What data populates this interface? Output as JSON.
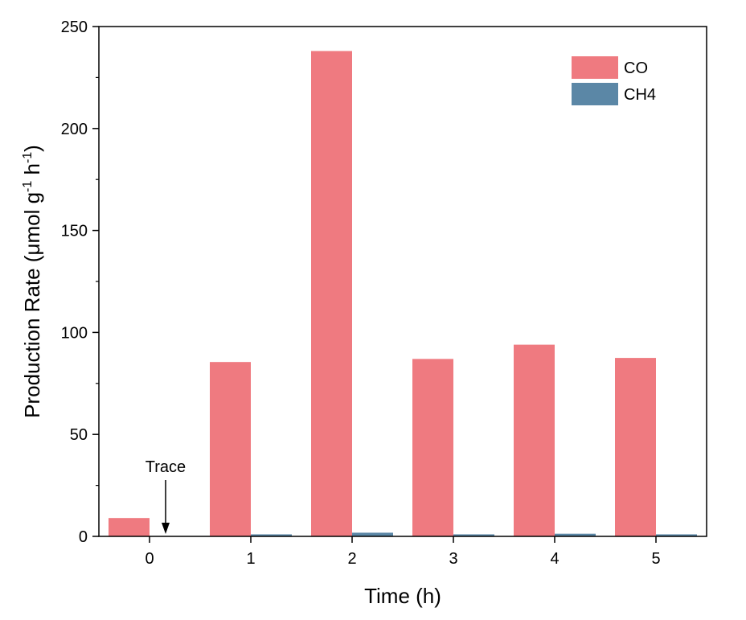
{
  "chart_data": {
    "type": "bar",
    "categories": [
      "0",
      "1",
      "2",
      "3",
      "4",
      "5"
    ],
    "series": [
      {
        "name": "CO",
        "values": [
          9,
          85.5,
          238,
          87,
          94,
          87.5
        ],
        "color": "#EF7A80"
      },
      {
        "name": "CH4",
        "values": [
          0,
          1.0,
          1.8,
          1.0,
          1.3,
          1.0
        ],
        "color": "#5B87A6"
      }
    ],
    "xlabel": "Time (h)",
    "ylabel_main": "Production Rate (",
    "ylabel_mu": "μ",
    "ylabel_mol": "mol g",
    "ylabel_sup1": "-1",
    "ylabel_h": " h",
    "ylabel_sup2": "-1",
    "ylabel_close": ")",
    "ylim": [
      0,
      250
    ],
    "yticks": [
      0,
      50,
      100,
      150,
      200,
      250
    ],
    "legend_position": "top-right",
    "annotation": {
      "text": "Trace",
      "category": "0",
      "series": "CH4"
    }
  }
}
